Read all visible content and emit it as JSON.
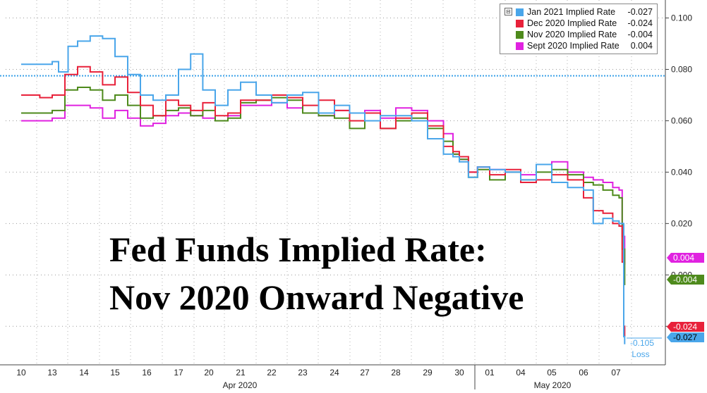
{
  "chart_data": {
    "type": "line",
    "title_lines": [
      "Fed Funds Implied Rate:",
      "Nov 2020 Onward Negative"
    ],
    "ylim": [
      -0.035,
      0.107
    ],
    "y_ticks": [
      {
        "value": 0.1,
        "label": "0.100"
      },
      {
        "value": 0.08,
        "label": "0.080"
      },
      {
        "value": 0.06,
        "label": "0.060"
      },
      {
        "value": 0.04,
        "label": "0.040"
      },
      {
        "value": 0.02,
        "label": "0.020"
      },
      {
        "value": 0.0,
        "label": "0.000"
      },
      {
        "value": -0.02,
        "label": "-0.020"
      }
    ],
    "x_ticks": [
      "10",
      "13",
      "14",
      "15",
      "16",
      "17",
      "20",
      "21",
      "22",
      "23",
      "24",
      "27",
      "28",
      "29",
      "30",
      "01",
      "04",
      "05",
      "06",
      "07"
    ],
    "x_months": [
      "Apr 2020",
      "May 2020"
    ],
    "grid": true,
    "legend_position": "top-right",
    "reference_line": {
      "value": 0.0775,
      "color": "#3aa0e8"
    },
    "series": [
      {
        "name": "Jan 2021 Implied Rate",
        "last": "-0.027",
        "color": "#4aa6ea",
        "x": [
          0,
          0.4,
          1,
          1.2,
          1.5,
          1.8,
          2.2,
          2.6,
          3,
          3.4,
          3.8,
          4.2,
          4.6,
          5,
          5.4,
          5.8,
          6.2,
          6.6,
          7,
          7.5,
          8,
          8.5,
          9,
          9.5,
          10,
          10.5,
          11,
          11.5,
          12,
          12.5,
          13,
          13.5,
          13.8,
          14,
          14.3,
          14.6,
          15,
          15.5,
          16,
          16.5,
          17,
          17.5,
          18,
          18.3,
          18.6,
          18.9,
          19.1,
          19.25,
          19.28
        ],
        "y": [
          0.082,
          0.082,
          0.083,
          0.079,
          0.089,
          0.091,
          0.093,
          0.092,
          0.085,
          0.078,
          0.07,
          0.068,
          0.07,
          0.08,
          0.086,
          0.072,
          0.066,
          0.072,
          0.075,
          0.07,
          0.067,
          0.07,
          0.071,
          0.063,
          0.066,
          0.063,
          0.06,
          0.062,
          0.062,
          0.06,
          0.053,
          0.047,
          0.046,
          0.044,
          0.038,
          0.042,
          0.041,
          0.04,
          0.037,
          0.043,
          0.036,
          0.034,
          0.033,
          0.02,
          0.022,
          0.021,
          0.02,
          -0.024,
          -0.027
        ]
      },
      {
        "name": "Dec 2020 Implied Rate",
        "last": "-0.024",
        "color": "#e8213a",
        "x": [
          0,
          0.6,
          1,
          1.4,
          1.8,
          2.2,
          2.6,
          3,
          3.4,
          3.8,
          4.2,
          4.6,
          5,
          5.4,
          5.8,
          6.2,
          6.6,
          7,
          7.5,
          8,
          8.5,
          9,
          9.5,
          10,
          10.5,
          11,
          11.5,
          12,
          12.5,
          13,
          13.5,
          13.8,
          14,
          14.3,
          14.6,
          15,
          15.5,
          16,
          16.5,
          17,
          17.5,
          18,
          18.3,
          18.6,
          18.9,
          19.1,
          19.2,
          19.25,
          19.28
        ],
        "y": [
          0.07,
          0.069,
          0.07,
          0.078,
          0.081,
          0.079,
          0.074,
          0.077,
          0.071,
          0.066,
          0.062,
          0.068,
          0.066,
          0.064,
          0.067,
          0.062,
          0.063,
          0.068,
          0.068,
          0.07,
          0.069,
          0.066,
          0.068,
          0.064,
          0.06,
          0.063,
          0.057,
          0.061,
          0.063,
          0.058,
          0.05,
          0.048,
          0.046,
          0.04,
          0.042,
          0.039,
          0.041,
          0.036,
          0.037,
          0.039,
          0.037,
          0.03,
          0.025,
          0.024,
          0.02,
          0.019,
          0.005,
          -0.02,
          -0.024
        ]
      },
      {
        "name": "Nov 2020 Implied Rate",
        "last": "-0.004",
        "color": "#4e8a1c",
        "x": [
          0,
          0.6,
          1,
          1.4,
          1.8,
          2.2,
          2.6,
          3,
          3.4,
          3.8,
          4.2,
          4.6,
          5,
          5.4,
          5.8,
          6.2,
          6.6,
          7,
          7.5,
          8,
          8.5,
          9,
          9.5,
          10,
          10.5,
          11,
          11.5,
          12,
          12.5,
          13,
          13.5,
          13.8,
          14,
          14.3,
          14.6,
          15,
          15.5,
          16,
          16.5,
          17,
          17.5,
          18,
          18.3,
          18.6,
          18.9,
          19.1,
          19.2,
          19.28
        ],
        "y": [
          0.063,
          0.063,
          0.064,
          0.072,
          0.073,
          0.072,
          0.068,
          0.07,
          0.066,
          0.061,
          0.062,
          0.064,
          0.065,
          0.062,
          0.064,
          0.06,
          0.061,
          0.067,
          0.068,
          0.069,
          0.068,
          0.063,
          0.062,
          0.061,
          0.057,
          0.06,
          0.057,
          0.06,
          0.061,
          0.057,
          0.052,
          0.047,
          0.045,
          0.038,
          0.041,
          0.037,
          0.04,
          0.037,
          0.04,
          0.041,
          0.039,
          0.036,
          0.035,
          0.033,
          0.031,
          0.03,
          0.01,
          -0.004
        ]
      },
      {
        "name": "Sept 2020 Implied Rate",
        "last": "0.004",
        "color": "#e022e0",
        "x": [
          0,
          0.6,
          1,
          1.4,
          1.8,
          2.2,
          2.6,
          3,
          3.4,
          3.8,
          4.2,
          4.6,
          5,
          5.4,
          5.8,
          6.2,
          6.6,
          7,
          7.5,
          8,
          8.5,
          9,
          9.5,
          10,
          10.5,
          11,
          11.5,
          12,
          12.5,
          13,
          13.5,
          13.8,
          14,
          14.3,
          14.6,
          15,
          15.5,
          16,
          16.5,
          17,
          17.5,
          18,
          18.3,
          18.6,
          18.9,
          19.1,
          19.2,
          19.28
        ],
        "y": [
          0.06,
          0.06,
          0.061,
          0.066,
          0.066,
          0.065,
          0.061,
          0.064,
          0.061,
          0.058,
          0.059,
          0.062,
          0.063,
          0.062,
          0.061,
          0.06,
          0.062,
          0.066,
          0.066,
          0.067,
          0.065,
          0.063,
          0.062,
          0.064,
          0.06,
          0.064,
          0.061,
          0.065,
          0.064,
          0.06,
          0.055,
          0.047,
          0.045,
          0.04,
          0.042,
          0.041,
          0.04,
          0.039,
          0.043,
          0.044,
          0.04,
          0.038,
          0.037,
          0.036,
          0.034,
          0.033,
          0.015,
          0.004
        ]
      }
    ],
    "annotation": {
      "value": "-0.105",
      "label": "Loss"
    }
  }
}
